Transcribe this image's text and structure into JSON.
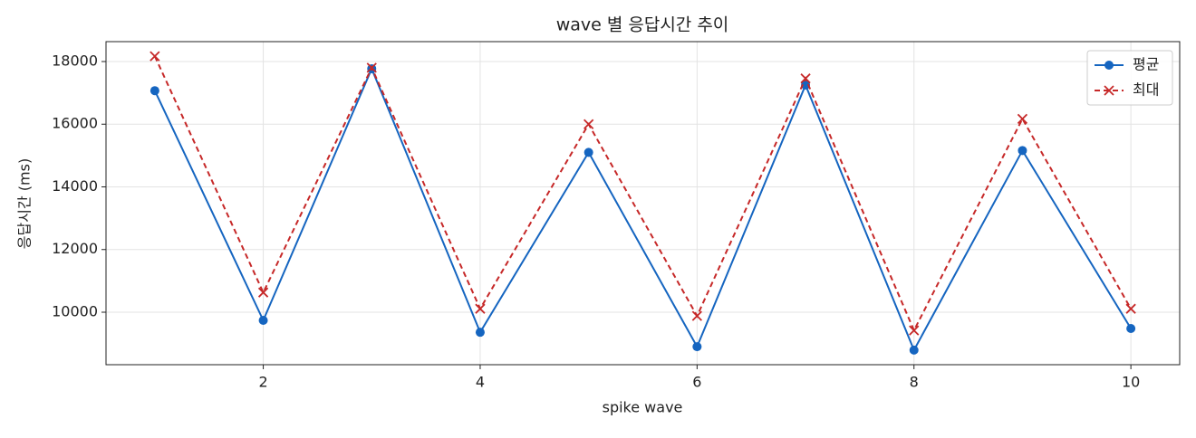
{
  "chart_data": {
    "type": "line",
    "title": "wave 별 응답시간 추이",
    "x_label": "spike wave",
    "y_label": "응답시간 (ms)",
    "x": [
      1,
      2,
      3,
      4,
      5,
      6,
      7,
      8,
      9,
      10
    ],
    "series": [
      {
        "name": "평균",
        "color": "#1565c0",
        "marker": "o",
        "dash": false,
        "values": [
          17070,
          9740,
          17770,
          9360,
          15100,
          8900,
          17250,
          8790,
          15160,
          9480
        ]
      },
      {
        "name": "최대",
        "color": "#c62828",
        "marker": "x",
        "dash": true,
        "values": [
          18170,
          10630,
          17800,
          10110,
          16000,
          9880,
          17460,
          9420,
          16170,
          10110
        ]
      }
    ],
    "xlim": [
      0.55,
      10.45
    ],
    "ylim": [
      8325,
      18635
    ],
    "xticks": [
      2,
      4,
      6,
      8,
      10
    ],
    "yticks": [
      10000,
      12000,
      14000,
      16000,
      18000
    ],
    "grid": true,
    "legend": "upper right"
  }
}
